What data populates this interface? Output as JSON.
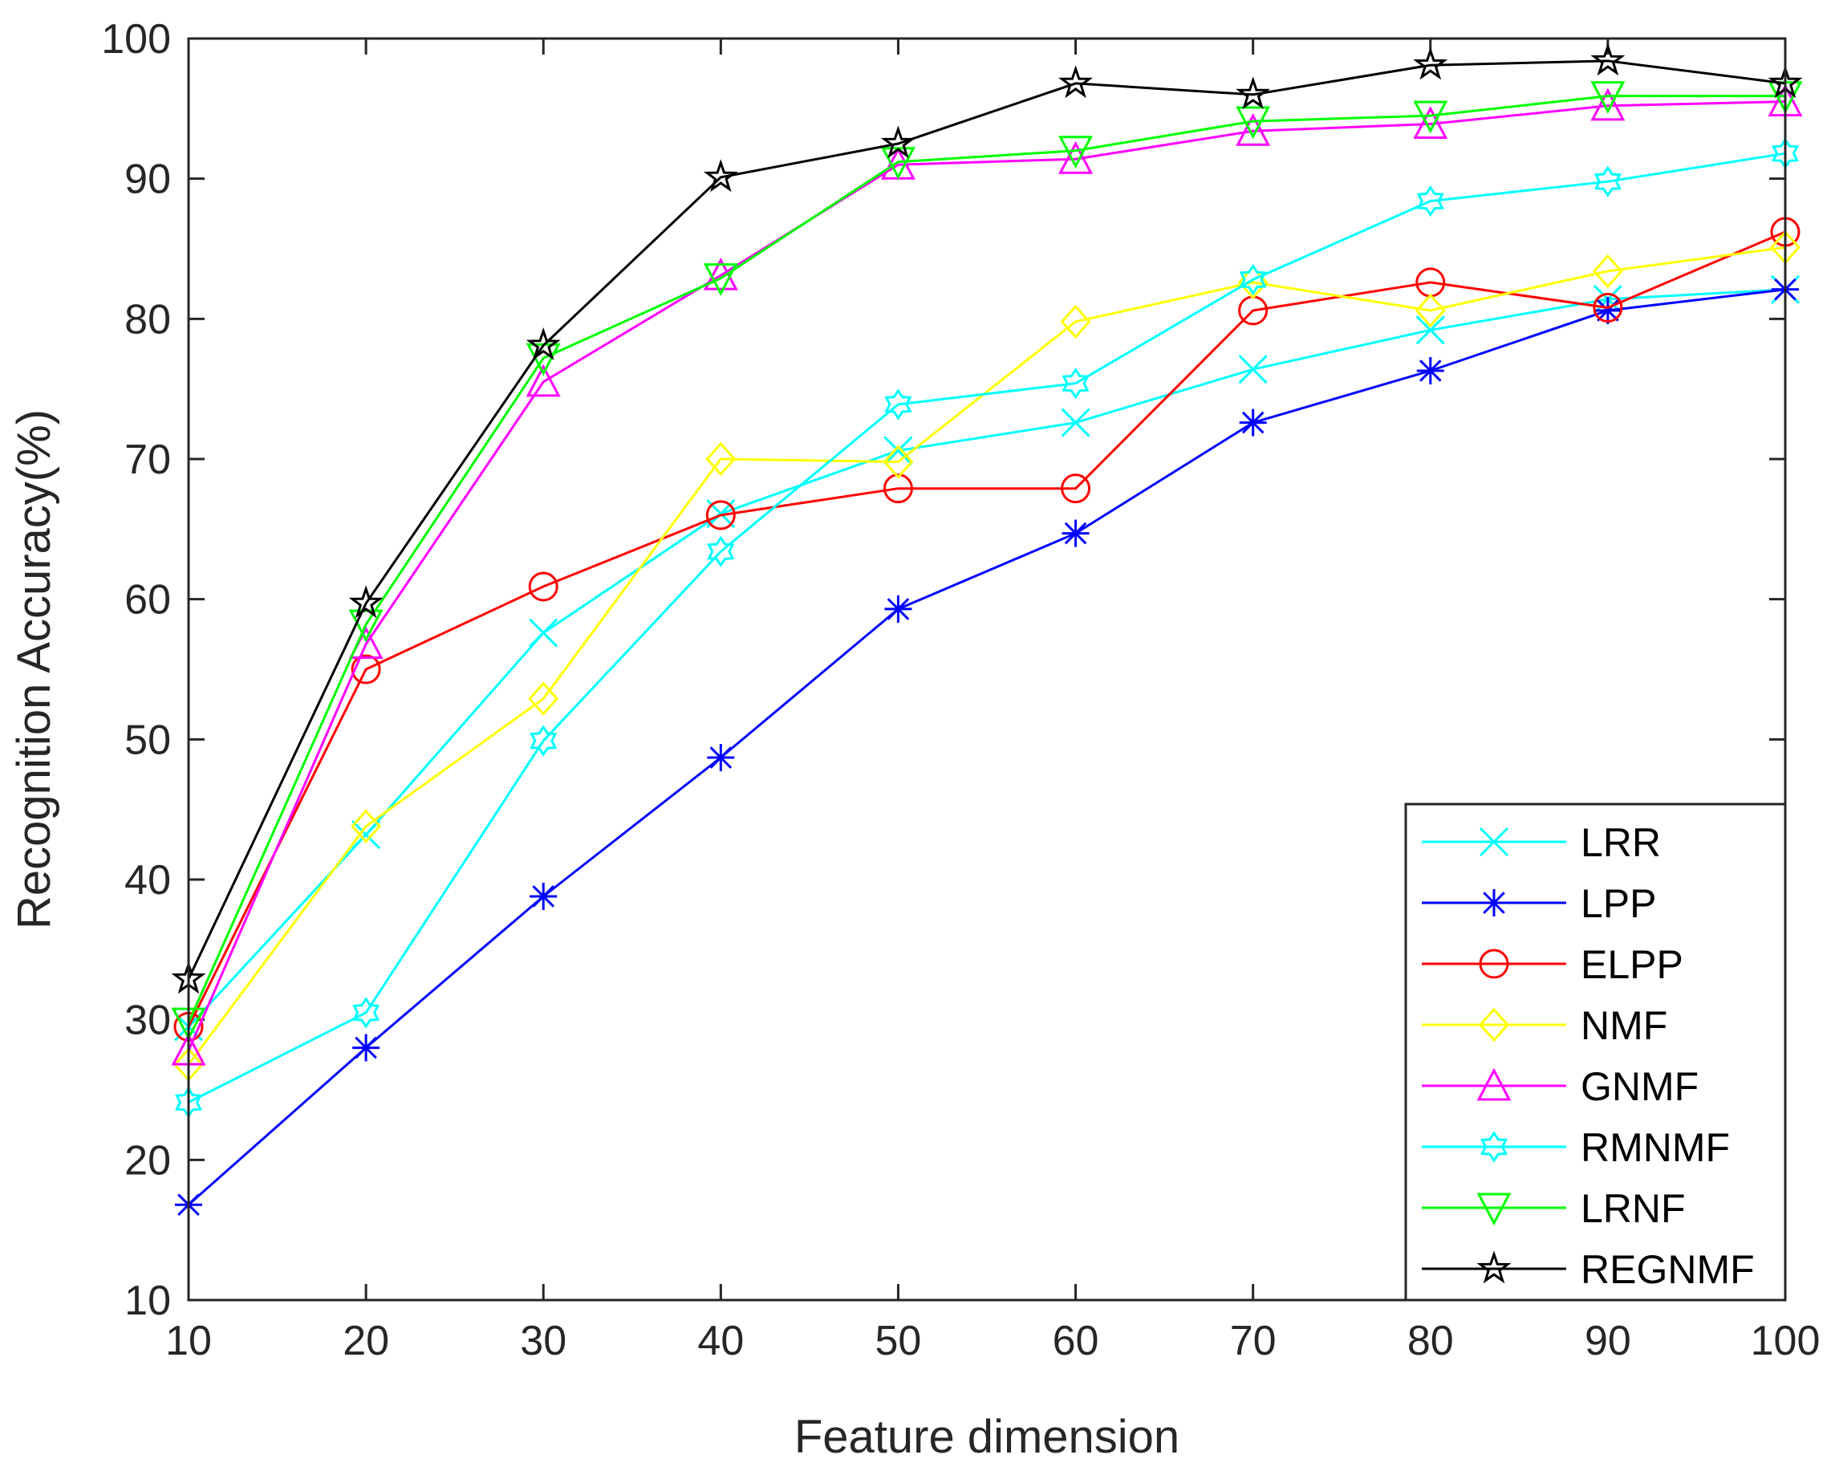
{
  "chart_data": {
    "type": "line",
    "title": "",
    "xlabel": "Feature dimension",
    "ylabel": "Recognition Accuracy(%)",
    "xlim": [
      10,
      100
    ],
    "ylim": [
      10,
      100
    ],
    "x": [
      10,
      20,
      30,
      40,
      50,
      60,
      70,
      80,
      90,
      100
    ],
    "xticks": [
      "10",
      "20",
      "30",
      "40",
      "50",
      "60",
      "70",
      "80",
      "90",
      "100"
    ],
    "yticks": [
      "10",
      "20",
      "30",
      "40",
      "50",
      "60",
      "70",
      "80",
      "90",
      "100"
    ],
    "grid": false,
    "legend_position": "bottom-right",
    "series": [
      {
        "name": "LRR",
        "color": "#00ffff",
        "marker": "x",
        "values": [
          29.5,
          43.2,
          57.6,
          66.1,
          70.6,
          72.6,
          76.4,
          79.2,
          81.4,
          82.1
        ]
      },
      {
        "name": "LPP",
        "color": "#0000ff",
        "marker": "asterisk",
        "values": [
          16.8,
          28.0,
          38.8,
          48.7,
          59.3,
          64.7,
          72.6,
          76.3,
          80.6,
          82.1
        ]
      },
      {
        "name": "ELPP",
        "color": "#ff0000",
        "marker": "circle",
        "values": [
          29.5,
          55.0,
          60.9,
          66.0,
          67.9,
          67.9,
          80.6,
          82.6,
          80.8,
          86.2
        ]
      },
      {
        "name": "NMF",
        "color": "#ffff00",
        "marker": "diamond",
        "values": [
          26.8,
          43.8,
          52.9,
          70.0,
          69.8,
          79.8,
          82.6,
          80.6,
          83.4,
          85.1
        ]
      },
      {
        "name": "GNMF",
        "color": "#ff00ff",
        "marker": "triangle-up",
        "values": [
          27.8,
          56.8,
          75.5,
          83.1,
          91.0,
          91.4,
          93.4,
          93.9,
          95.2,
          95.5
        ]
      },
      {
        "name": "RMNMF",
        "color": "#00ffff",
        "marker": "hexagram",
        "values": [
          24.1,
          30.5,
          49.9,
          63.4,
          73.9,
          75.4,
          82.8,
          88.4,
          89.8,
          91.8
        ]
      },
      {
        "name": "LRNF",
        "color": "#00ff00",
        "marker": "triangle-down",
        "values": [
          29.8,
          58.2,
          77.2,
          82.9,
          91.2,
          92.0,
          94.1,
          94.5,
          95.9,
          95.9
        ]
      },
      {
        "name": "REGNMF",
        "color": "#000000",
        "marker": "star",
        "values": [
          32.9,
          59.7,
          78.1,
          90.1,
          92.5,
          96.8,
          96.0,
          98.1,
          98.4,
          96.8
        ]
      }
    ]
  }
}
